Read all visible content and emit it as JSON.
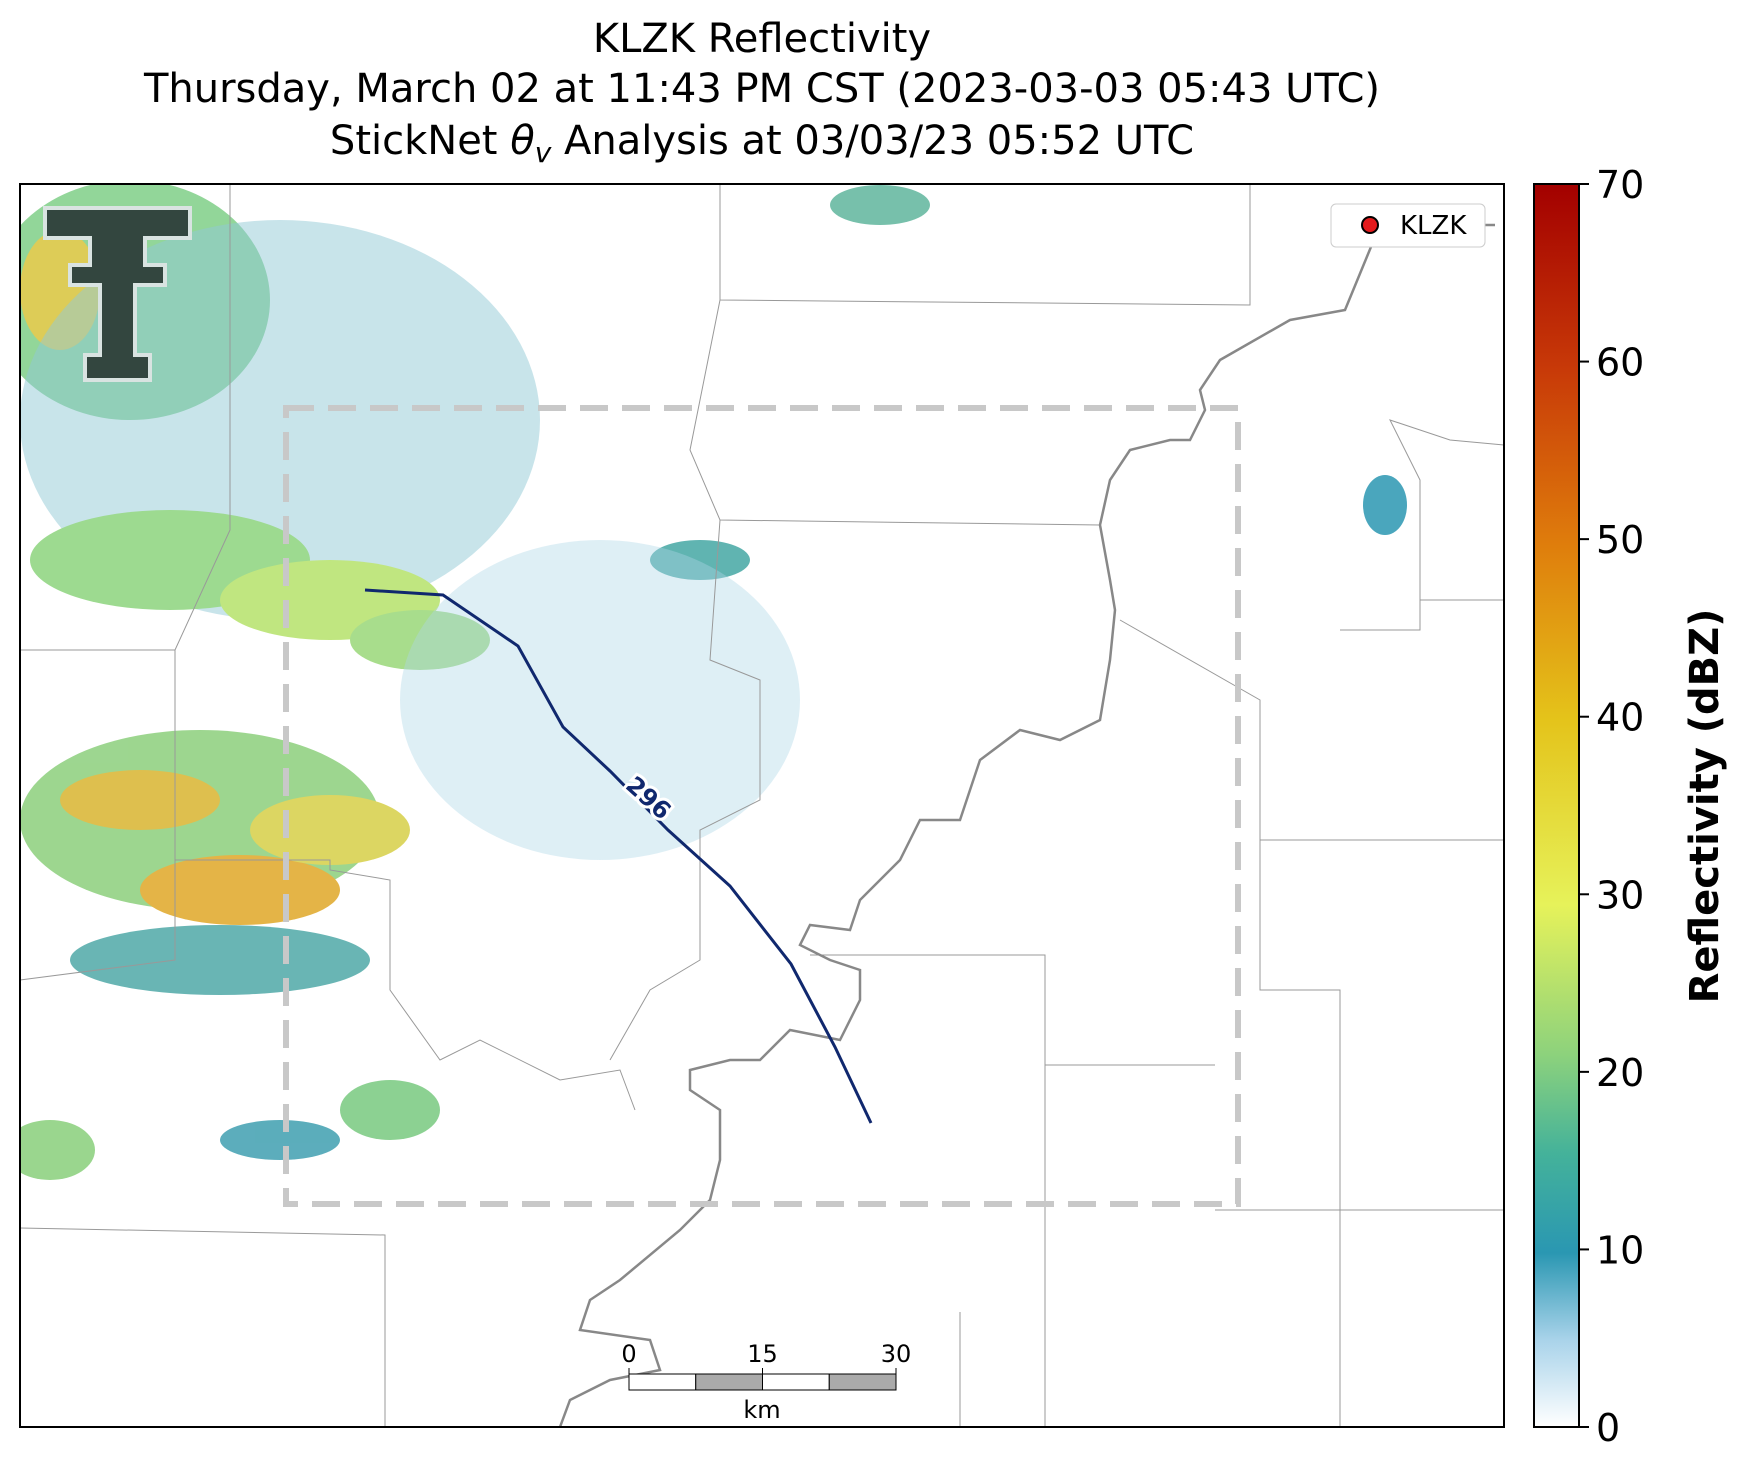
{
  "title_lines": [
    "KLZK Reflectivity",
    "Thursday, March 02 at 11:43 PM CST (2023-03-03 05:43 UTC)"
  ],
  "analysis_title": {
    "prefix": "StickNet ",
    "symbol": "θ",
    "subscript": "v",
    "suffix": " Analysis at 03/03/23 05:52 UTC"
  },
  "contour": {
    "value": 296
  },
  "legend": {
    "label": "KLZK"
  },
  "scale_bar": {
    "ticks": [
      0,
      15,
      30
    ],
    "unit": "km"
  },
  "colorbar": {
    "label": "Reflectivity (dBZ)",
    "lim": [
      0,
      70
    ],
    "ticks": [
      0,
      10,
      20,
      30,
      40,
      50,
      60,
      70
    ]
  }
}
